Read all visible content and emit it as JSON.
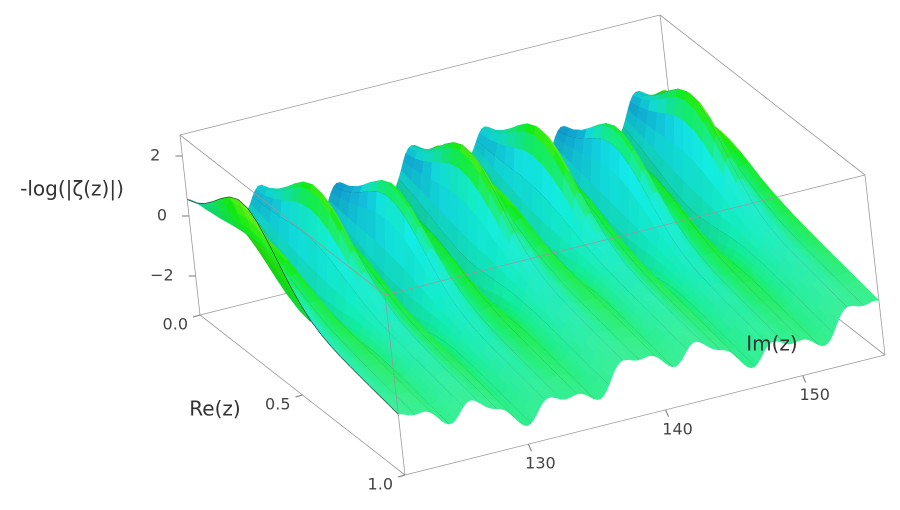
{
  "chart_data": {
    "type": "surface3d",
    "zlabel": "-log(|ζ(z)|)",
    "xlabel": "Re(z)",
    "ylabel": "Im(z)",
    "xlim": [
      0,
      1
    ],
    "xticks": [
      {
        "value": 0,
        "label": "0.0"
      },
      {
        "value": 0.5,
        "label": "0.5"
      },
      {
        "value": 1,
        "label": "1.0"
      }
    ],
    "ylim": [
      121,
      156
    ],
    "yticks": [
      130,
      140,
      150
    ],
    "zlim": [
      -3.3,
      2.7
    ],
    "zticks": [
      {
        "value": -2,
        "label": "−2"
      },
      0,
      2
    ]
  }
}
